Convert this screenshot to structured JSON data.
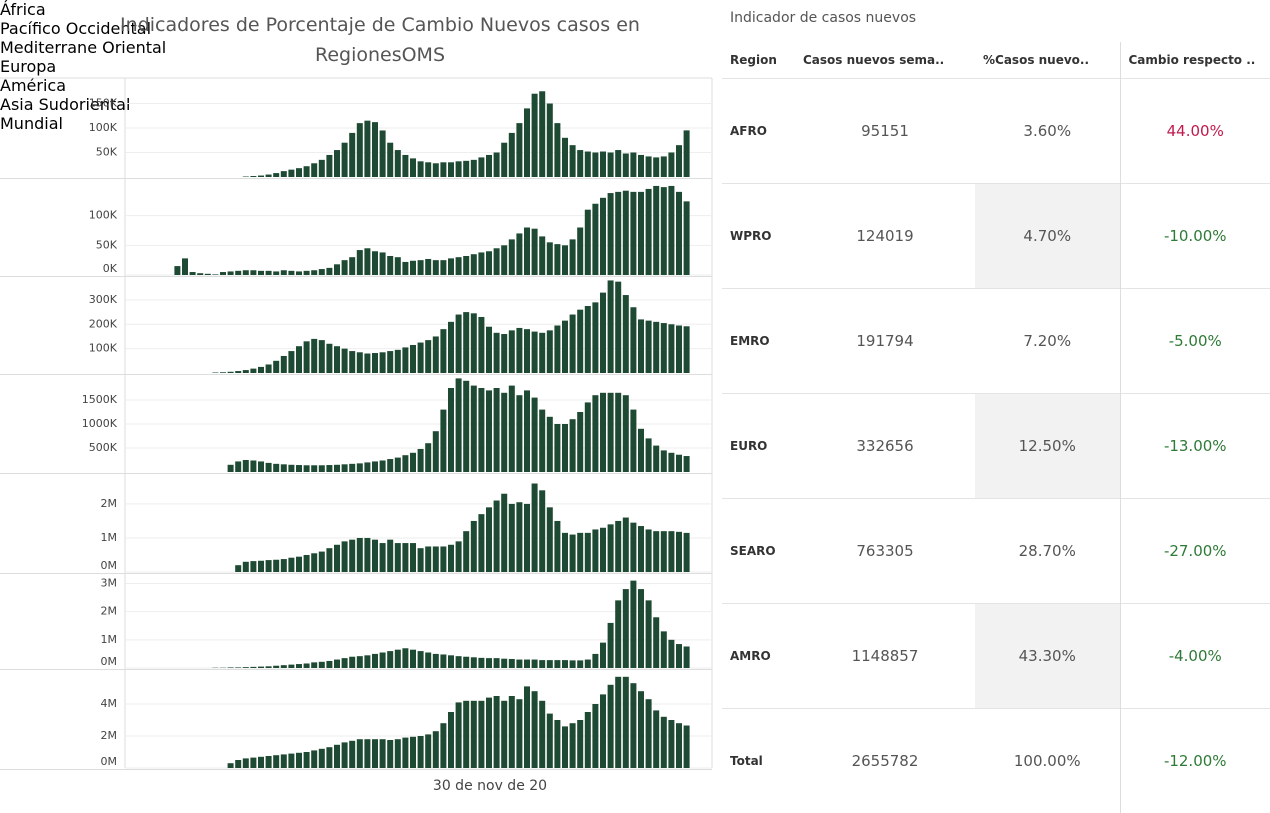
{
  "title": "Indicadores de Porcentaje de Cambio Nuevos casos en RegionesOMS",
  "x_label": "30 de nov de 20",
  "chart_data": [
    {
      "type": "bar",
      "label": "África",
      "color": "#1e4a33",
      "grid": true,
      "categories": [
        null,
        null,
        null,
        null,
        null,
        null,
        null,
        null,
        null,
        null,
        null,
        null,
        null,
        null,
        null,
        null,
        null,
        null,
        null,
        null,
        null,
        null,
        null,
        null,
        null,
        null,
        null,
        null,
        null,
        null,
        null,
        null,
        null,
        null,
        null,
        null,
        null,
        null,
        null,
        null,
        null,
        null,
        null,
        null,
        null,
        null,
        null,
        null,
        null,
        null,
        null,
        null,
        null,
        null,
        null,
        null,
        null,
        null,
        null,
        null,
        null,
        null,
        null,
        null,
        null,
        null,
        null,
        null,
        null,
        null,
        null,
        null,
        null,
        null
      ],
      "values": [
        null,
        null,
        null,
        null,
        null,
        null,
        null,
        null,
        null,
        null,
        null,
        null,
        null,
        null,
        null,
        1000,
        2000,
        3000,
        5000,
        8000,
        12000,
        15000,
        18000,
        22000,
        28000,
        35000,
        45000,
        55000,
        70000,
        90000,
        110000,
        115000,
        112000,
        95000,
        70000,
        55000,
        45000,
        38000,
        32000,
        30000,
        28000,
        30000,
        30000,
        32000,
        33000,
        35000,
        40000,
        45000,
        50000,
        70000,
        90000,
        110000,
        140000,
        170000,
        175000,
        150000,
        110000,
        80000,
        65000,
        55000,
        52000,
        50000,
        52000,
        50000,
        55000,
        48000,
        50000,
        45000,
        42000,
        40000,
        42000,
        50000,
        65000,
        95151
      ],
      "ylim": [
        0,
        198000
      ],
      "yticks": [
        {
          "value": 50000,
          "label": "50K"
        },
        {
          "value": 100000,
          "label": "100K"
        },
        {
          "value": 150000,
          "label": "150K"
        }
      ]
    },
    {
      "type": "bar",
      "label": "Pacífico Occidental",
      "color": "#1e4a33",
      "grid": true,
      "categories": [
        null,
        null,
        null,
        null,
        null,
        null,
        null,
        null,
        null,
        null,
        null,
        null,
        null,
        null,
        null,
        null,
        null,
        null,
        null,
        null,
        null,
        null,
        null,
        null,
        null,
        null,
        null,
        null,
        null,
        null,
        null,
        null,
        null,
        null,
        null,
        null,
        null,
        null,
        null,
        null,
        null,
        null,
        null,
        null,
        null,
        null,
        null,
        null,
        null,
        null,
        null,
        null,
        null,
        null,
        null,
        null,
        null,
        null,
        null,
        null,
        null,
        null,
        null,
        null,
        null,
        null,
        null,
        null,
        null,
        null,
        null,
        null,
        null,
        null
      ],
      "values": [
        null,
        null,
        null,
        null,
        null,
        null,
        15000,
        28000,
        5000,
        3000,
        2000,
        1000,
        5000,
        6000,
        7000,
        8000,
        8000,
        7000,
        7000,
        6000,
        8000,
        7000,
        6000,
        7000,
        8000,
        10000,
        12000,
        18000,
        25000,
        30000,
        42000,
        45000,
        40000,
        38000,
        32000,
        30000,
        22000,
        24000,
        25000,
        27000,
        25000,
        25000,
        28000,
        30000,
        32000,
        35000,
        38000,
        40000,
        45000,
        50000,
        60000,
        70000,
        80000,
        78000,
        65000,
        55000,
        52000,
        50000,
        60000,
        80000,
        110000,
        120000,
        130000,
        138000,
        140000,
        142000,
        140000,
        140000,
        145000,
        150000,
        148000,
        150000,
        140000,
        124019
      ],
      "ylim": [
        0,
        160000
      ],
      "yticks": [
        {
          "value": 0,
          "label": "0K"
        },
        {
          "value": 50000,
          "label": "50K"
        },
        {
          "value": 100000,
          "label": "100K"
        }
      ]
    },
    {
      "type": "bar",
      "label": "Mediterrane Oriental",
      "color": "#1e4a33",
      "grid": true,
      "categories": [
        null,
        null,
        null,
        null,
        null,
        null,
        null,
        null,
        null,
        null,
        null,
        null,
        null,
        null,
        null,
        null,
        null,
        null,
        null,
        null,
        null,
        null,
        null,
        null,
        null,
        null,
        null,
        null,
        null,
        null,
        null,
        null,
        null,
        null,
        null,
        null,
        null,
        null,
        null,
        null,
        null,
        null,
        null,
        null,
        null,
        null,
        null,
        null,
        null,
        null,
        null,
        null,
        null,
        null,
        null,
        null,
        null,
        null,
        null,
        null,
        null,
        null,
        null,
        null,
        null,
        null,
        null,
        null,
        null,
        null,
        null,
        null,
        null,
        null
      ],
      "values": [
        null,
        null,
        null,
        null,
        null,
        null,
        null,
        null,
        null,
        null,
        null,
        2000,
        3000,
        5000,
        8000,
        12000,
        18000,
        25000,
        35000,
        50000,
        70000,
        90000,
        110000,
        130000,
        140000,
        135000,
        120000,
        110000,
        100000,
        90000,
        85000,
        80000,
        82000,
        85000,
        90000,
        95000,
        105000,
        115000,
        125000,
        135000,
        150000,
        180000,
        210000,
        240000,
        250000,
        245000,
        230000,
        190000,
        165000,
        160000,
        175000,
        185000,
        180000,
        170000,
        165000,
        175000,
        195000,
        215000,
        240000,
        260000,
        275000,
        290000,
        330000,
        380000,
        375000,
        320000,
        270000,
        220000,
        215000,
        210000,
        205000,
        200000,
        195000,
        191794
      ],
      "ylim": [
        0,
        390000
      ],
      "yticks": [
        {
          "value": 100000,
          "label": "100K"
        },
        {
          "value": 200000,
          "label": "200K"
        },
        {
          "value": 300000,
          "label": "300K"
        }
      ]
    },
    {
      "type": "bar",
      "label": "Europa",
      "color": "#1e4a33",
      "grid": true,
      "categories": [
        null,
        null,
        null,
        null,
        null,
        null,
        null,
        null,
        null,
        null,
        null,
        null,
        null,
        null,
        null,
        null,
        null,
        null,
        null,
        null,
        null,
        null,
        null,
        null,
        null,
        null,
        null,
        null,
        null,
        null,
        null,
        null,
        null,
        null,
        null,
        null,
        null,
        null,
        null,
        null,
        null,
        null,
        null,
        null,
        null,
        null,
        null,
        null,
        null,
        null,
        null,
        null,
        null,
        null,
        null,
        null,
        null,
        null,
        null,
        null,
        null,
        null,
        null,
        null,
        null,
        null,
        null,
        null,
        null,
        null,
        null,
        null,
        null,
        null
      ],
      "values": [
        null,
        null,
        null,
        null,
        null,
        null,
        null,
        null,
        null,
        null,
        null,
        null,
        null,
        150000,
        220000,
        250000,
        240000,
        220000,
        190000,
        170000,
        160000,
        150000,
        145000,
        140000,
        140000,
        140000,
        145000,
        150000,
        160000,
        170000,
        180000,
        200000,
        220000,
        240000,
        270000,
        300000,
        350000,
        400000,
        480000,
        600000,
        850000,
        1300000,
        1750000,
        1950000,
        1900000,
        1800000,
        1750000,
        1700000,
        1750000,
        1650000,
        1800000,
        1600000,
        1700000,
        1550000,
        1300000,
        1150000,
        1000000,
        1000000,
        1100000,
        1250000,
        1450000,
        1600000,
        1650000,
        1650000,
        1650000,
        1600000,
        1300000,
        900000,
        700000,
        550000,
        450000,
        400000,
        360000,
        332656
      ],
      "ylim": [
        0,
        2000000
      ],
      "yticks": [
        {
          "value": 500000,
          "label": "500K"
        },
        {
          "value": 1000000,
          "label": "1000K"
        },
        {
          "value": 1500000,
          "label": "1500K"
        }
      ]
    },
    {
      "type": "bar",
      "label": "América",
      "color": "#1e4a33",
      "grid": true,
      "categories": [
        null,
        null,
        null,
        null,
        null,
        null,
        null,
        null,
        null,
        null,
        null,
        null,
        null,
        null,
        null,
        null,
        null,
        null,
        null,
        null,
        null,
        null,
        null,
        null,
        null,
        null,
        null,
        null,
        null,
        null,
        null,
        null,
        null,
        null,
        null,
        null,
        null,
        null,
        null,
        null,
        null,
        null,
        null,
        null,
        null,
        null,
        null,
        null,
        null,
        null,
        null,
        null,
        null,
        null,
        null,
        null,
        null,
        null,
        null,
        null,
        null,
        null,
        null,
        null,
        null,
        null,
        null,
        null,
        null,
        null,
        null,
        null,
        null,
        null
      ],
      "values": [
        null,
        null,
        null,
        null,
        null,
        null,
        null,
        null,
        null,
        null,
        null,
        null,
        null,
        null,
        200000,
        300000,
        320000,
        330000,
        350000,
        360000,
        380000,
        420000,
        450000,
        500000,
        550000,
        600000,
        700000,
        800000,
        900000,
        950000,
        1000000,
        1000000,
        950000,
        850000,
        950000,
        850000,
        850000,
        850000,
        700000,
        750000,
        750000,
        750000,
        800000,
        900000,
        1200000,
        1500000,
        1700000,
        1900000,
        2100000,
        2300000,
        2000000,
        2050000,
        2000000,
        2600000,
        2400000,
        1900000,
        1500000,
        1150000,
        1100000,
        1150000,
        1150000,
        1250000,
        1300000,
        1400000,
        1500000,
        1600000,
        1450000,
        1350000,
        1250000,
        1200000,
        1200000,
        1200000,
        1180000,
        1148857
      ],
      "ylim": [
        0,
        2850000
      ],
      "yticks": [
        {
          "value": 0,
          "label": "0M"
        },
        {
          "value": 1000000,
          "label": "1M"
        },
        {
          "value": 2000000,
          "label": "2M"
        }
      ]
    },
    {
      "type": "bar",
      "label": "Asia Sudoriental",
      "color": "#1e4a33",
      "grid": true,
      "categories": [
        null,
        null,
        null,
        null,
        null,
        null,
        null,
        null,
        null,
        null,
        null,
        null,
        null,
        null,
        null,
        null,
        null,
        null,
        null,
        null,
        null,
        null,
        null,
        null,
        null,
        null,
        null,
        null,
        null,
        null,
        null,
        null,
        null,
        null,
        null,
        null,
        null,
        null,
        null,
        null,
        null,
        null,
        null,
        null,
        null,
        null,
        null,
        null,
        null,
        null,
        null,
        null,
        null,
        null,
        null,
        null,
        null,
        null,
        null,
        null,
        null,
        null,
        null,
        null,
        null,
        null,
        null,
        null,
        null,
        null,
        null,
        null,
        null,
        null
      ],
      "values": [
        null,
        null,
        null,
        null,
        null,
        null,
        null,
        null,
        null,
        null,
        null,
        10000,
        10000,
        20000,
        20000,
        30000,
        40000,
        50000,
        60000,
        80000,
        100000,
        120000,
        140000,
        160000,
        200000,
        220000,
        250000,
        300000,
        350000,
        400000,
        420000,
        450000,
        500000,
        550000,
        600000,
        650000,
        700000,
        650000,
        600000,
        550000,
        500000,
        480000,
        450000,
        420000,
        400000,
        380000,
        360000,
        350000,
        350000,
        330000,
        320000,
        300000,
        300000,
        300000,
        280000,
        280000,
        280000,
        280000,
        270000,
        270000,
        300000,
        500000,
        900000,
        1600000,
        2400000,
        2800000,
        3100000,
        2800000,
        2400000,
        1800000,
        1300000,
        1000000,
        850000,
        763305
      ],
      "ylim": [
        0,
        3300000
      ],
      "yticks": [
        {
          "value": 0,
          "label": "0M"
        },
        {
          "value": 1000000,
          "label": "1M"
        },
        {
          "value": 2000000,
          "label": "2M"
        },
        {
          "value": 3000000,
          "label": "3M"
        }
      ]
    },
    {
      "type": "bar",
      "label": "Mundial",
      "color": "#1e4a33",
      "grid": true,
      "categories": [
        null,
        null,
        null,
        null,
        null,
        null,
        null,
        null,
        null,
        null,
        null,
        null,
        null,
        null,
        null,
        null,
        null,
        null,
        null,
        null,
        null,
        null,
        null,
        null,
        null,
        null,
        null,
        null,
        null,
        null,
        null,
        null,
        null,
        null,
        null,
        null,
        null,
        null,
        null,
        null,
        null,
        null,
        null,
        null,
        null,
        null,
        null,
        null,
        null,
        null,
        null,
        null,
        null,
        null,
        null,
        null,
        null,
        null,
        null,
        null,
        null,
        null,
        null,
        null,
        null,
        null,
        null,
        null,
        null,
        null,
        null,
        null,
        null,
        null
      ],
      "values": [
        null,
        null,
        null,
        null,
        null,
        null,
        null,
        null,
        null,
        null,
        null,
        null,
        null,
        300000,
        500000,
        600000,
        650000,
        700000,
        750000,
        800000,
        850000,
        900000,
        950000,
        1000000,
        1100000,
        1200000,
        1300000,
        1450000,
        1600000,
        1700000,
        1800000,
        1800000,
        1800000,
        1800000,
        1750000,
        1800000,
        1900000,
        1950000,
        2000000,
        2100000,
        2300000,
        2800000,
        3500000,
        4100000,
        4200000,
        4200000,
        4200000,
        4400000,
        4500000,
        4200000,
        4500000,
        4300000,
        5100000,
        4800000,
        4200000,
        3400000,
        3000000,
        2600000,
        2800000,
        3000000,
        3500000,
        4000000,
        4600000,
        5200000,
        5700000,
        5700000,
        5300000,
        4800000,
        4300000,
        3600000,
        3200000,
        3000000,
        2800000,
        2655782
      ],
      "ylim": [
        0,
        6000000
      ],
      "yticks": [
        {
          "value": 0,
          "label": "0M"
        },
        {
          "value": 2000000,
          "label": "2M"
        },
        {
          "value": 4000000,
          "label": "4M"
        }
      ]
    }
  ],
  "table": {
    "title": "Indicador de casos nuevos",
    "columns": [
      "Region",
      "Casos nuevos sema..",
      "%Casos nuevo..",
      "Cambio respecto .."
    ],
    "rows": [
      [
        "AFRO",
        "95151",
        "3.60%",
        "44.00%"
      ],
      [
        "WPRO",
        "124019",
        "4.70%",
        "-10.00%"
      ],
      [
        "EMRO",
        "191794",
        "7.20%",
        "-5.00%"
      ],
      [
        "EURO",
        "332656",
        "12.50%",
        "-13.00%"
      ],
      [
        "SEARO",
        "763305",
        "28.70%",
        "-27.00%"
      ],
      [
        "AMRO",
        "1148857",
        "43.30%",
        "-4.00%"
      ],
      [
        "Total",
        "2655782",
        "100.00%",
        "-12.00%"
      ]
    ],
    "positive_color": "#c2184b",
    "negative_color": "#2e7a36"
  }
}
